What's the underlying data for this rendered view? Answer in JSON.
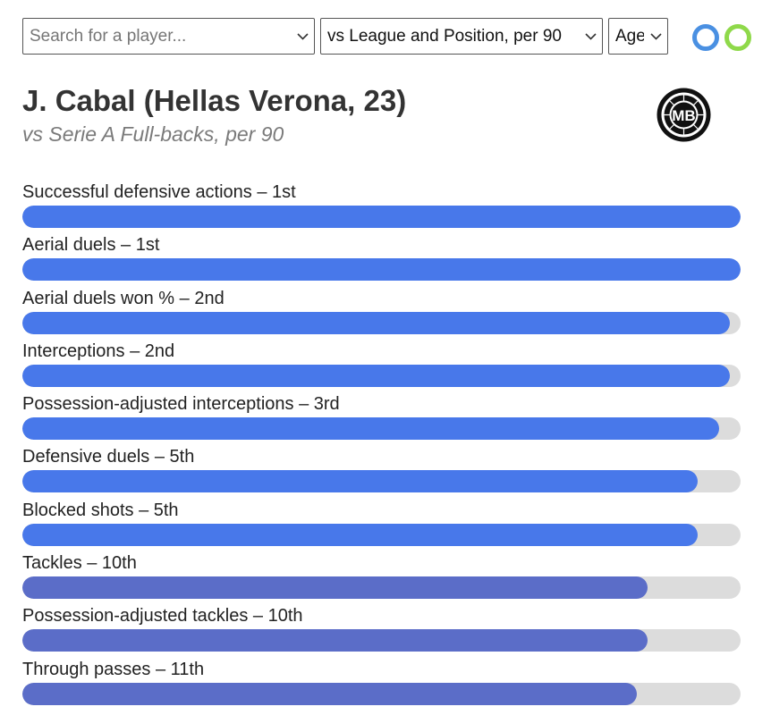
{
  "controls": {
    "player_search": {
      "placeholder": "Search for a player...",
      "value": ""
    },
    "comparison": {
      "value": "vs League and Position, per 90"
    },
    "age": {
      "value": "Age"
    },
    "toggles": [
      {
        "name": "toggle-blue",
        "color": "#4a90e2"
      },
      {
        "name": "toggle-green",
        "color": "#8fd94a"
      }
    ]
  },
  "header": {
    "title": "J. Cabal (Hellas Verona, 23)",
    "subtitle": "vs Serie A Full-backs, per 90",
    "logo_text": "MB"
  },
  "metrics": [
    {
      "label": "Successful defensive actions – 1st",
      "percentile": 100,
      "color": "#4878ea"
    },
    {
      "label": "Aerial duels – 1st",
      "percentile": 100,
      "color": "#4878ea"
    },
    {
      "label": "Aerial duels won % – 2nd",
      "percentile": 98.5,
      "color": "#4878ea"
    },
    {
      "label": "Interceptions – 2nd",
      "percentile": 98.5,
      "color": "#4878ea"
    },
    {
      "label": "Possession-adjusted interceptions – 3rd",
      "percentile": 97,
      "color": "#4878ea"
    },
    {
      "label": "Defensive duels – 5th",
      "percentile": 94,
      "color": "#4878ea"
    },
    {
      "label": "Blocked shots – 5th",
      "percentile": 94,
      "color": "#4878ea"
    },
    {
      "label": "Tackles – 10th",
      "percentile": 87,
      "color": "#5b6dc8"
    },
    {
      "label": "Possession-adjusted tackles – 10th",
      "percentile": 87,
      "color": "#5b6dc8"
    },
    {
      "label": "Through passes – 11th",
      "percentile": 85.5,
      "color": "#5b6dc8"
    }
  ]
}
